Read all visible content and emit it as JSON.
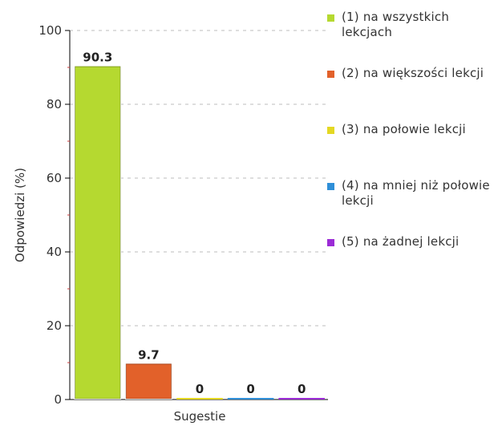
{
  "chart_data": {
    "type": "bar",
    "title": "",
    "xlabel": "Sugestie",
    "ylabel": "Odpowiedzi (%)",
    "ylim": [
      0,
      100
    ],
    "yticks": [
      0,
      20,
      40,
      60,
      80,
      100
    ],
    "grid": true,
    "legend_position": "right",
    "series": [
      {
        "name": "(1) na wszystkich lekcjach",
        "value": 90.3,
        "label": "90.3",
        "color": "#b5d930"
      },
      {
        "name": "(2) na większości lekcji",
        "value": 9.7,
        "label": "9.7",
        "color": "#e2612a"
      },
      {
        "name": "(3) na połowie lekcji",
        "value": 0,
        "label": "0",
        "color": "#e4d823"
      },
      {
        "name": "(4) na mniej niż połowie lekcji",
        "value": 0,
        "label": "0",
        "color": "#2f8fd8"
      },
      {
        "name": "(5) na żadnej lekcji",
        "value": 0,
        "label": "0",
        "color": "#9b2bd6"
      }
    ]
  }
}
